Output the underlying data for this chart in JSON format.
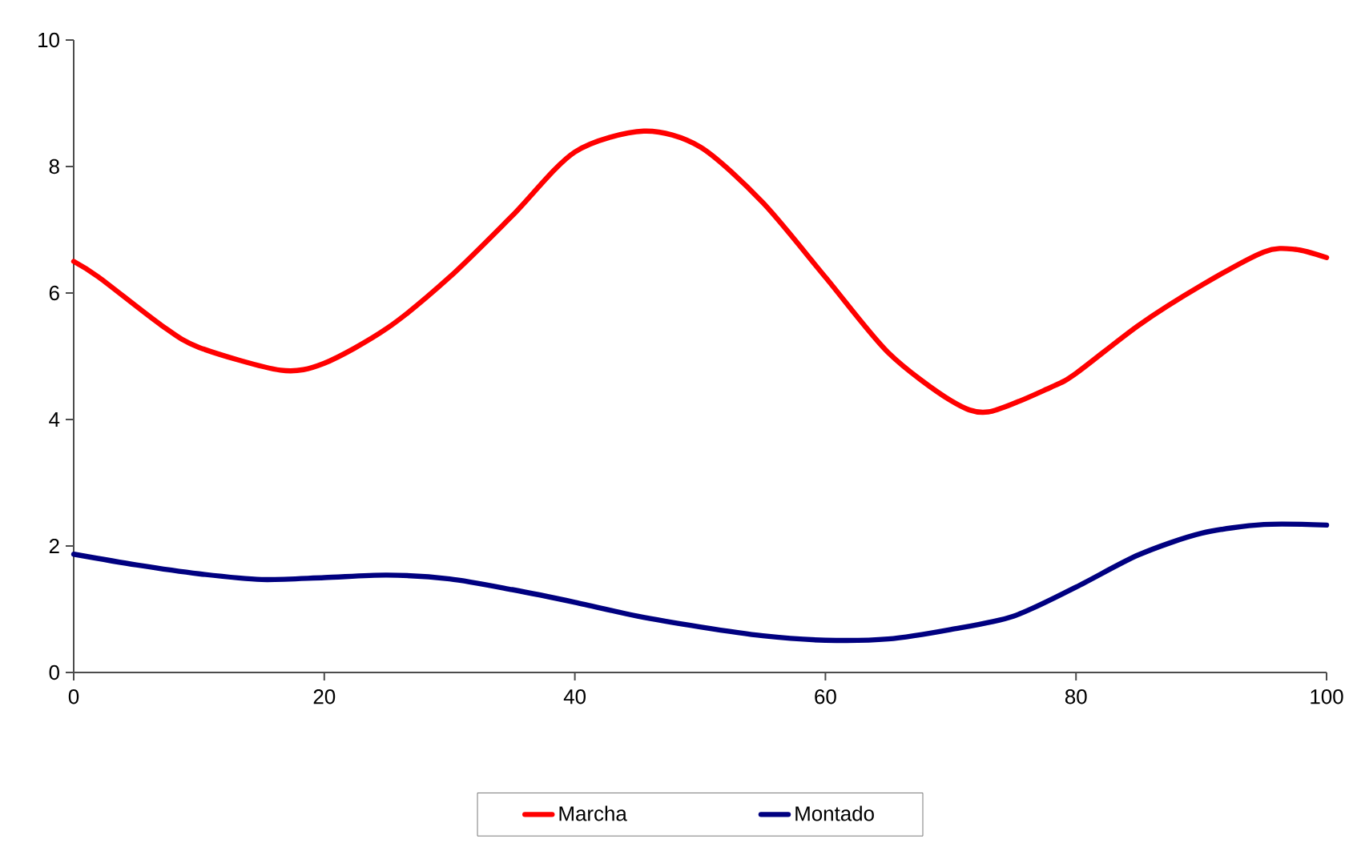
{
  "chart_data": {
    "type": "line",
    "xlim": [
      0,
      100
    ],
    "xticks": [
      0,
      20,
      40,
      60,
      80,
      100
    ],
    "ylim": [
      0,
      10
    ],
    "yticks": [
      0,
      2,
      4,
      6,
      8,
      10
    ],
    "grid": false,
    "legend": "bottom",
    "marker": "none",
    "line_style": "solid",
    "series": [
      {
        "name": "Marcha",
        "color": "#ff0000",
        "x": [
          0,
          2,
          7,
          10,
          16.5,
          20,
          25,
          30,
          35,
          40,
          45.5,
          50,
          55,
          60,
          65,
          70,
          73,
          78,
          80,
          85,
          90,
          95,
          97.5,
          100
        ],
        "values": [
          6.5,
          6.25,
          5.49,
          5.14,
          4.78,
          4.89,
          5.44,
          6.25,
          7.22,
          8.23,
          8.56,
          8.31,
          7.43,
          6.25,
          5.06,
          4.3,
          4.12,
          4.51,
          4.73,
          5.49,
          6.12,
          6.65,
          6.69,
          6.56
        ]
      },
      {
        "name": "Montado",
        "color": "#000080",
        "x": [
          0,
          5,
          10,
          15,
          20,
          25,
          30,
          35,
          40,
          45,
          50,
          55,
          60,
          65,
          70,
          75,
          80,
          85,
          90,
          95,
          100
        ],
        "values": [
          1.87,
          1.7,
          1.56,
          1.47,
          1.5,
          1.54,
          1.48,
          1.31,
          1.11,
          0.89,
          0.72,
          0.58,
          0.51,
          0.53,
          0.68,
          0.89,
          1.35,
          1.86,
          2.2,
          2.34,
          2.33
        ]
      }
    ]
  }
}
